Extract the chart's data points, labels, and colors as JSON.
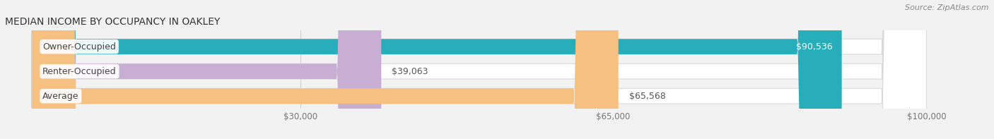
{
  "title": "MEDIAN INCOME BY OCCUPANCY IN OAKLEY",
  "source": "Source: ZipAtlas.com",
  "categories": [
    "Owner-Occupied",
    "Renter-Occupied",
    "Average"
  ],
  "values": [
    90536,
    39063,
    65568
  ],
  "labels": [
    "$90,536",
    "$39,063",
    "$65,568"
  ],
  "bar_colors": [
    "#28aebb",
    "#c9aed4",
    "#f5c080"
  ],
  "xlim_data": [
    0,
    100000
  ],
  "xlim_display": [
    -3000,
    107000
  ],
  "xticks": [
    30000,
    65000,
    100000
  ],
  "xticklabels": [
    "$30,000",
    "$65,000",
    "$100,000"
  ],
  "bg_color": "#f2f2f2",
  "bar_bg_color": "#e8e8e8",
  "bar_bg_edge": "#d8d8d8",
  "title_fontsize": 10,
  "tick_fontsize": 8.5,
  "source_fontsize": 8,
  "label_fontsize": 9,
  "cat_fontsize": 9
}
